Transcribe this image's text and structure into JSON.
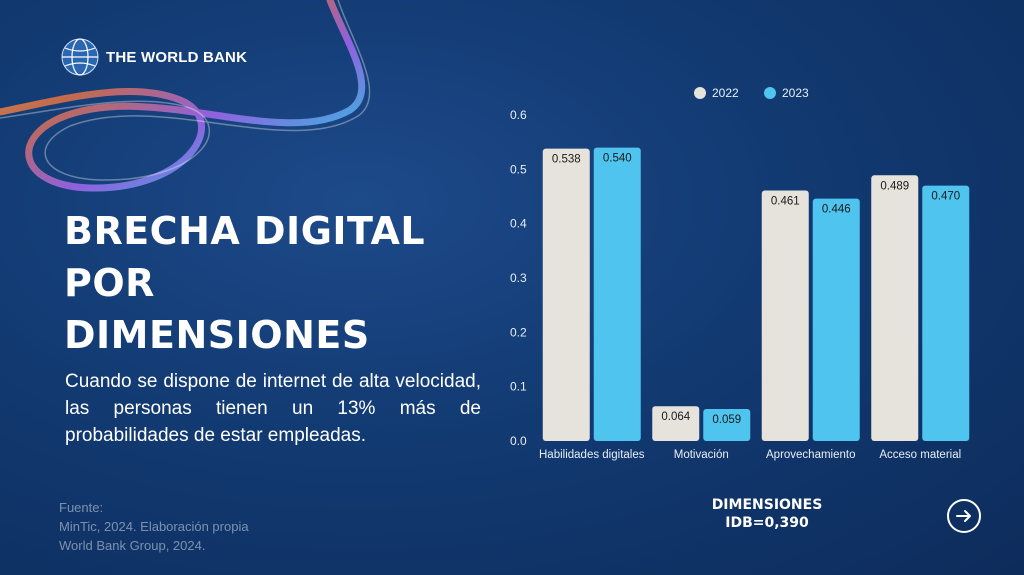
{
  "brand": {
    "logo_text": "THE WORLD BANK"
  },
  "title_lines": [
    "BRECHA DIGITAL",
    "POR",
    "DIMENSIONES"
  ],
  "description": "Cuando se dispone de internet de alta velocidad, las personas tienen un 13% más de probabilidades de estar empleadas.",
  "source": {
    "label": "Fuente:",
    "line1": "MinTic, 2024. Elaboración propia",
    "line2": "World Bank Group, 2024."
  },
  "dimensions": {
    "label": "DIMENSIONES",
    "value": "IDB=0,390"
  },
  "colors": {
    "bar_2022": "#e6e3dc",
    "bar_2023": "#4ec4ef",
    "axis_text": "#e8eef6"
  },
  "chart_data": {
    "type": "bar",
    "categories": [
      "Habilidades digitales",
      "Motivación",
      "Aprovechamiento",
      "Acceso material"
    ],
    "series": [
      {
        "name": "2022",
        "values": [
          0.538,
          0.064,
          0.461,
          0.489
        ],
        "labels": [
          "0.538",
          "0.064",
          "0.461",
          "0.489"
        ]
      },
      {
        "name": "2023",
        "values": [
          0.54,
          0.059,
          0.446,
          0.47
        ],
        "labels": [
          "0.540",
          "0.059",
          "0.446",
          "0.470"
        ]
      }
    ],
    "yticks": [
      "0.0",
      "0.1",
      "0.2",
      "0.3",
      "0.4",
      "0.5",
      "0.6"
    ],
    "ylim": [
      0,
      0.6
    ],
    "title": "",
    "xlabel": "",
    "ylabel": "",
    "legend_position": "top",
    "grid": false
  }
}
